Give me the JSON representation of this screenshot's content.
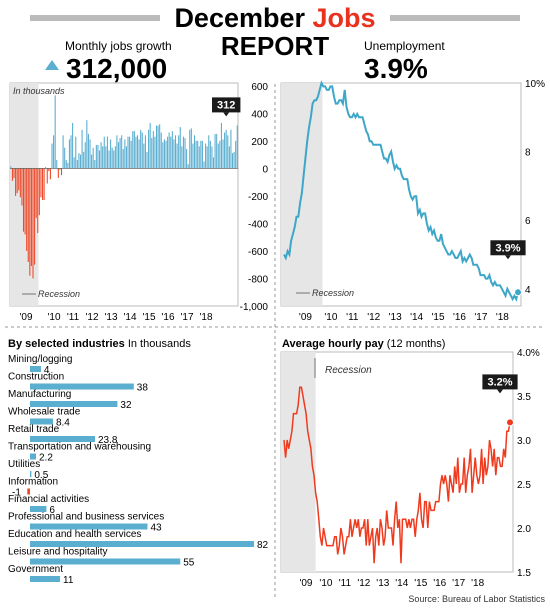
{
  "header": {
    "title_part1": "December",
    "title_part2": "Jobs",
    "title_line2": "REPORT",
    "left_label": "Monthly jobs growth",
    "left_value": "312,000",
    "right_label": "Unemployment",
    "right_value": "3.9%"
  },
  "colors": {
    "blue": "#5aaed0",
    "red": "#f04a2a",
    "line_blue": "#3ea6c8",
    "line_red": "#f03a1e",
    "recession_band": "#e6e6e6",
    "header_red": "#e8321e",
    "callout_bg": "#1a1a1a"
  },
  "source": "Source: Bureau of Labor Statistics",
  "chart_data": [
    {
      "id": "jobs",
      "type": "bar",
      "unit_note": "In thousands",
      "recession_label": "Recession",
      "callout": "312",
      "x_tick_labels": [
        "'09",
        "'10",
        "'11",
        "'12",
        "'13",
        "'14",
        "'15",
        "'16",
        "'17",
        "'18"
      ],
      "y_tick_labels": [
        "600",
        "400",
        "200",
        "0",
        "-200",
        "-400",
        "-600",
        "-800",
        "-1,000"
      ],
      "ylim": [
        -1000,
        620
      ],
      "values_monthly_2008_2018": [
        15,
        -90,
        -70,
        -200,
        -180,
        -160,
        -210,
        -270,
        -460,
        -480,
        -600,
        -680,
        -780,
        -710,
        -800,
        -700,
        -360,
        -470,
        -340,
        -210,
        -230,
        -230,
        10,
        -110,
        -20,
        -80,
        180,
        240,
        530,
        60,
        -70,
        -10,
        -50,
        240,
        150,
        60,
        40,
        210,
        240,
        330,
        80,
        230,
        60,
        110,
        100,
        280,
        120,
        190,
        350,
        250,
        210,
        100,
        150,
        60,
        170,
        170,
        130,
        190,
        160,
        230,
        160,
        230,
        130,
        210,
        150,
        130,
        160,
        240,
        190,
        220,
        240,
        140,
        210,
        160,
        230,
        230,
        200,
        270,
        270,
        230,
        240,
        210,
        280,
        260,
        180,
        240,
        120,
        280,
        330,
        220,
        270,
        230,
        310,
        310,
        320,
        260,
        190,
        210,
        200,
        230,
        260,
        230,
        270,
        210,
        240,
        180,
        240,
        300,
        160,
        230,
        220,
        140,
        30,
        280,
        290,
        180,
        240,
        200,
        200,
        160,
        200,
        200,
        50,
        180,
        160,
        240,
        200,
        160,
        80,
        250,
        250,
        180,
        200,
        330,
        210,
        260,
        280,
        240,
        160,
        280,
        110,
        120,
        200,
        312
      ],
      "recession_months": 18
    },
    {
      "id": "unemployment",
      "type": "line",
      "recession_label": "Recession",
      "callout": "3.9%",
      "x_tick_labels": [
        "'09",
        "'10",
        "'11",
        "'12",
        "'13",
        "'14",
        "'15",
        "'16",
        "'17",
        "'18"
      ],
      "y_tick_labels": [
        "10%",
        "8",
        "6",
        "4"
      ],
      "ylim": [
        3.5,
        10
      ],
      "values_monthly_2008_2018": [
        5.0,
        4.9,
        5.1,
        5.0,
        5.4,
        5.6,
        5.8,
        6.1,
        6.1,
        6.5,
        6.8,
        7.3,
        7.8,
        8.3,
        8.7,
        9.0,
        9.4,
        9.5,
        9.5,
        9.6,
        9.8,
        10.0,
        9.9,
        9.9,
        9.8,
        9.8,
        9.9,
        9.9,
        9.6,
        9.4,
        9.4,
        9.5,
        9.5,
        9.4,
        9.8,
        9.3,
        9.1,
        9.0,
        9.0,
        9.1,
        9.0,
        9.1,
        9.0,
        9.0,
        9.0,
        8.8,
        8.6,
        8.5,
        8.3,
        8.3,
        8.2,
        8.2,
        8.2,
        8.2,
        8.2,
        8.0,
        7.8,
        7.8,
        7.7,
        7.9,
        8.0,
        7.7,
        7.5,
        7.6,
        7.5,
        7.5,
        7.3,
        7.2,
        7.2,
        7.2,
        6.9,
        6.7,
        6.6,
        6.7,
        6.7,
        6.2,
        6.3,
        6.1,
        6.2,
        6.2,
        5.9,
        5.7,
        5.8,
        5.6,
        5.7,
        5.5,
        5.4,
        5.4,
        5.6,
        5.3,
        5.2,
        5.1,
        5.0,
        5.0,
        5.1,
        5.0,
        4.9,
        4.9,
        5.0,
        5.1,
        4.8,
        4.9,
        4.8,
        4.9,
        5.0,
        4.9,
        4.7,
        4.7,
        4.7,
        4.6,
        4.4,
        4.4,
        4.4,
        4.3,
        4.3,
        4.4,
        4.2,
        4.1,
        4.2,
        4.1,
        4.1,
        4.1,
        4.0,
        3.9,
        3.8,
        4.0,
        3.9,
        3.8,
        3.7,
        3.8,
        3.7,
        3.9
      ],
      "recession_months": 18
    },
    {
      "id": "industries",
      "type": "bar",
      "title": "By selected industries",
      "unit_note": "In thousands",
      "categories": [
        "Mining/logging",
        "Construction",
        "Manufacturing",
        "Wholesale trade",
        "Retail trade",
        "Transportation and warehousing",
        "Utilities",
        "Information",
        "Financial activities",
        "Professional and business services",
        "Education and health services",
        "Leisure and hospitality",
        "Government"
      ],
      "values": [
        4,
        38,
        32,
        8.4,
        23.8,
        2.2,
        0.5,
        -1,
        6,
        43,
        82,
        55,
        11
      ],
      "value_labels": [
        "4",
        "38",
        "32",
        "8.4",
        "23.8",
        "2.2",
        "0.5",
        "-1",
        "6",
        "43",
        "82",
        "55",
        "11"
      ]
    },
    {
      "id": "wages",
      "type": "line",
      "title": "Average hourly pay",
      "title_suffix": "(12 months)",
      "recession_label": "Recession",
      "callout": "3.2%",
      "x_tick_labels": [
        "'09",
        "'10",
        "'11",
        "'12",
        "'13",
        "'14",
        "'15",
        "'16",
        "'17",
        "'18"
      ],
      "y_tick_labels": [
        "4.0%",
        "3.5",
        "3.0",
        "2.5",
        "2.0",
        "1.5"
      ],
      "ylim": [
        1.5,
        4.0
      ],
      "values_monthly_2008_2018": [
        3.0,
        2.8,
        3.0,
        2.9,
        3.0,
        3.1,
        3.3,
        3.3,
        3.3,
        3.4,
        3.6,
        3.6,
        3.5,
        3.4,
        3.3,
        3.1,
        3.0,
        2.9,
        2.7,
        2.6,
        2.4,
        2.3,
        2.1,
        1.9,
        1.8,
        2.0,
        1.9,
        1.8,
        1.8,
        1.8,
        1.8,
        1.8,
        1.9,
        1.9,
        1.7,
        1.8,
        2.0,
        1.9,
        1.7,
        1.8,
        1.9,
        1.9,
        2.1,
        1.9,
        2.0,
        2.1,
        2.0,
        2.1,
        1.9,
        2.0,
        2.0,
        2.1,
        1.8,
        2.1,
        1.8,
        1.9,
        2.0,
        1.6,
        1.9,
        2.0,
        1.8,
        2.1,
        2.0,
        1.8,
        1.9,
        2.2,
        2.0,
        2.0,
        2.0,
        1.8,
        2.1,
        2.3,
        2.0,
        2.1,
        1.6,
        2.1,
        2.1,
        2.1,
        2.0,
        2.1,
        2.0,
        2.1,
        2.1,
        1.9,
        2.1,
        2.2,
        2.4,
        2.1,
        2.0,
        2.3,
        2.3,
        2.0,
        2.3,
        2.2,
        2.2,
        2.2,
        2.3,
        2.3,
        2.3,
        2.5,
        2.6,
        2.5,
        2.6,
        2.5,
        2.3,
        2.6,
        2.5,
        2.4,
        2.7,
        2.5,
        2.8,
        2.4,
        2.5,
        2.5,
        2.8,
        2.4,
        2.6,
        2.7,
        2.9,
        2.4,
        2.6,
        2.8,
        2.6,
        2.5,
        2.6,
        2.9,
        2.5,
        2.8,
        2.6,
        2.7,
        3.0,
        2.9,
        2.7,
        2.9,
        2.6,
        2.8,
        2.8,
        2.7,
        2.7,
        2.9,
        2.8,
        3.1,
        3.1,
        3.2
      ],
      "recession_months": 18
    }
  ]
}
